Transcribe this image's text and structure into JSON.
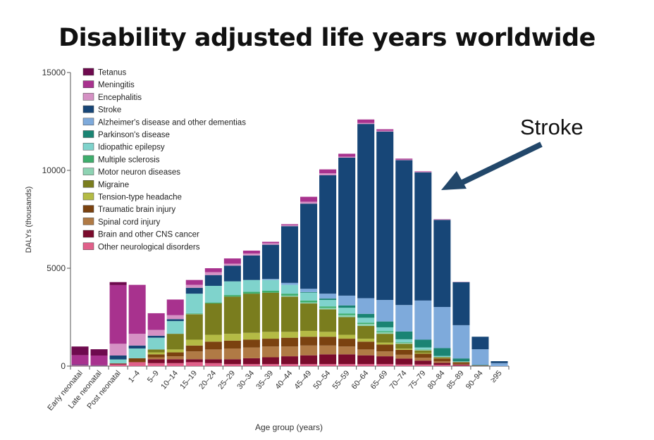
{
  "chart_data": {
    "type": "bar",
    "stacked": true,
    "title": "Disability adjusted life years worldwide",
    "xlabel": "Age group (years)",
    "ylabel": "DALYs (thousands)",
    "ylim": [
      0,
      15000
    ],
    "yticks": [
      0,
      5000,
      10000,
      15000
    ],
    "ytick_labels": [
      "0",
      "5000",
      "10000",
      "15000"
    ],
    "legend_position": "top-left",
    "annotation": "Stroke",
    "categories": [
      "Early neonatal",
      "Late neonatal",
      "Post neonatal",
      "1–4",
      "5–9",
      "10–14",
      "15–19",
      "20–24",
      "25–29",
      "30–34",
      "35–39",
      "40–44",
      "45–49",
      "50–54",
      "55–59",
      "60–64",
      "65–69",
      "70–74",
      "75–79",
      "80–84",
      "85–89",
      "90–94",
      "≥95"
    ],
    "series": [
      {
        "name": "Tetanus",
        "color": "#6e0a4e",
        "values": [
          440,
          320,
          150,
          0,
          0,
          0,
          0,
          0,
          0,
          0,
          0,
          0,
          0,
          0,
          0,
          0,
          0,
          0,
          0,
          0,
          0,
          0,
          0
        ]
      },
      {
        "name": "Meningitis",
        "color": "#a8328e",
        "values": [
          500,
          500,
          3000,
          2500,
          850,
          800,
          250,
          200,
          270,
          150,
          70,
          50,
          250,
          200,
          150,
          180,
          70,
          50,
          30,
          20,
          10,
          0,
          0
        ]
      },
      {
        "name": "Encephalitis",
        "color": "#d591c4",
        "values": [
          0,
          0,
          600,
          600,
          300,
          200,
          150,
          150,
          100,
          100,
          80,
          50,
          100,
          100,
          50,
          50,
          50,
          30,
          20,
          10,
          0,
          0,
          0
        ]
      },
      {
        "name": "Stroke",
        "color": "#174677",
        "values": [
          30,
          20,
          200,
          150,
          100,
          100,
          300,
          550,
          800,
          1250,
          1750,
          2900,
          4350,
          6050,
          7050,
          8900,
          8600,
          7400,
          6550,
          4450,
          2200,
          640,
          100
        ]
      },
      {
        "name": "Alzheimer's disease and other dementias",
        "color": "#7eaadb",
        "values": [
          0,
          0,
          0,
          0,
          0,
          0,
          0,
          0,
          0,
          0,
          50,
          100,
          170,
          250,
          500,
          800,
          1100,
          1350,
          2000,
          2100,
          1700,
          800,
          150
        ]
      },
      {
        "name": "Parkinson's disease",
        "color": "#1a8473",
        "values": [
          0,
          0,
          0,
          0,
          0,
          0,
          0,
          0,
          0,
          0,
          0,
          0,
          30,
          70,
          120,
          200,
          300,
          400,
          400,
          400,
          150,
          30,
          0
        ]
      },
      {
        "name": "Idiopathic epilepsy",
        "color": "#7fd3cc",
        "values": [
          0,
          0,
          200,
          500,
          600,
          650,
          1000,
          850,
          700,
          600,
          550,
          450,
          400,
          330,
          300,
          250,
          200,
          150,
          100,
          60,
          30,
          0,
          0
        ]
      },
      {
        "name": "Multiple sclerosis",
        "color": "#3fae6d",
        "values": [
          0,
          0,
          0,
          0,
          0,
          0,
          20,
          50,
          80,
          100,
          100,
          100,
          100,
          80,
          80,
          70,
          50,
          30,
          20,
          0,
          0,
          0,
          0
        ]
      },
      {
        "name": "Motor neuron diseases",
        "color": "#8ed3b3",
        "values": [
          0,
          0,
          0,
          0,
          0,
          0,
          30,
          0,
          0,
          0,
          0,
          50,
          50,
          70,
          100,
          100,
          80,
          50,
          30,
          0,
          0,
          0,
          0
        ]
      },
      {
        "name": "Migraine",
        "color": "#7a7d1e",
        "values": [
          0,
          0,
          0,
          0,
          150,
          800,
          1300,
          1600,
          1900,
          2000,
          2000,
          1800,
          1400,
          1150,
          900,
          650,
          450,
          250,
          130,
          50,
          20,
          0,
          0
        ]
      },
      {
        "name": "Tension-type headache",
        "color": "#b4bb45",
        "values": [
          0,
          0,
          0,
          0,
          100,
          150,
          300,
          350,
          350,
          350,
          350,
          300,
          300,
          250,
          200,
          150,
          100,
          60,
          40,
          20,
          0,
          0,
          0
        ]
      },
      {
        "name": "Traumatic brain injury",
        "color": "#7b4210",
        "values": [
          0,
          0,
          20,
          200,
          150,
          200,
          300,
          400,
          400,
          400,
          400,
          450,
          450,
          450,
          400,
          400,
          350,
          250,
          200,
          150,
          80,
          20,
          0
        ]
      },
      {
        "name": "Spinal cord injury",
        "color": "#b07a45",
        "values": [
          0,
          0,
          0,
          0,
          100,
          150,
          400,
          500,
          550,
          550,
          550,
          500,
          500,
          450,
          400,
          300,
          250,
          200,
          150,
          80,
          30,
          0,
          0
        ]
      },
      {
        "name": "Brain and other CNS cancer",
        "color": "#7a0b2c",
        "values": [
          0,
          0,
          40,
          0,
          200,
          200,
          150,
          200,
          250,
          300,
          350,
          400,
          450,
          500,
          500,
          450,
          400,
          300,
          200,
          100,
          50,
          0,
          0
        ]
      },
      {
        "name": "Other neurological disorders",
        "color": "#e0608a",
        "values": [
          30,
          20,
          80,
          200,
          150,
          150,
          200,
          150,
          100,
          100,
          100,
          100,
          100,
          100,
          100,
          100,
          100,
          80,
          80,
          60,
          30,
          10,
          0
        ]
      }
    ]
  }
}
